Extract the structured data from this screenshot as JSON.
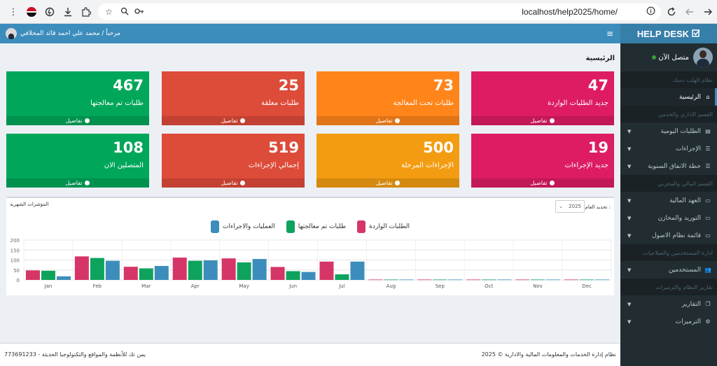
{
  "browser": {
    "url": "localhost/help2025/home/"
  },
  "brand": {
    "title": "HELP DESK"
  },
  "sidebar": {
    "user_status": "متصل الآن",
    "items": [
      {
        "type": "section",
        "label": "نظام الهلب دسك"
      },
      {
        "type": "item",
        "label": "الرئيسية",
        "active": true,
        "caret": false,
        "icon": "home-icon"
      },
      {
        "type": "section",
        "label": "القسم الاداري والخدمي"
      },
      {
        "type": "item",
        "label": "الطلبات اليومية",
        "caret": true,
        "icon": "file-icon"
      },
      {
        "type": "item",
        "label": "الإجراءات",
        "caret": true,
        "icon": "list-icon"
      },
      {
        "type": "item",
        "label": "خطة الانفاق السنوية",
        "caret": true,
        "icon": "list-icon"
      },
      {
        "type": "section",
        "label": "القسم المالي والمخزني"
      },
      {
        "type": "item",
        "label": "العهد المالية",
        "caret": true,
        "icon": "card-icon"
      },
      {
        "type": "item",
        "label": "التوريد والمخازن",
        "caret": true,
        "icon": "card-icon"
      },
      {
        "type": "item",
        "label": "قائمة نظام الاصول",
        "caret": true,
        "icon": "card-icon"
      },
      {
        "type": "section",
        "label": "ادارة المستخدمين والصلاحيات"
      },
      {
        "type": "item",
        "label": "المستخدمين",
        "caret": true,
        "icon": "users-icon"
      },
      {
        "type": "section",
        "label": "تقارير النظام والترميزات"
      },
      {
        "type": "item",
        "label": "التقارير",
        "caret": true,
        "icon": "copy-icon"
      },
      {
        "type": "item",
        "label": "الترميزات",
        "caret": true,
        "icon": "gears-icon"
      }
    ]
  },
  "header": {
    "greeting": "مرحباً / محمد علي احمد قائد المخلافي"
  },
  "page": {
    "title": "الرئيسية"
  },
  "boxes": [
    {
      "value": "47",
      "label": "جديد الطلبات الواردة",
      "more": "تفاصيل",
      "color": "#dd1c63"
    },
    {
      "value": "73",
      "label": "طلبات تحت المعالجة",
      "more": "تفاصيل",
      "color": "#ff851b"
    },
    {
      "value": "25",
      "label": "طلبات معلقة",
      "more": "تفاصيل",
      "color": "#dd4b39"
    },
    {
      "value": "467",
      "label": "طلبات تم معالجتها",
      "more": "تفاصيل",
      "color": "#00a65a"
    },
    {
      "value": "19",
      "label": "جديد الإجراءات",
      "more": "تفاصيل",
      "color": "#dd1c63"
    },
    {
      "value": "500",
      "label": "الإجراءات المرحلة",
      "more": "تفاصيل",
      "color": "#f39c12"
    },
    {
      "value": "519",
      "label": "إجمالي الإجراءات",
      "more": "تفاصيل",
      "color": "#dd4b39"
    },
    {
      "value": "108",
      "label": "المتصلين الان",
      "more": "تفاصيل",
      "color": "#00a65a"
    }
  ],
  "chart_panel": {
    "title": "المؤشرات الشهرية",
    "year_label": "تحديد العام :",
    "year_value": "2025"
  },
  "chart_data": {
    "type": "bar",
    "categories": [
      "Jan",
      "Feb",
      "Mar",
      "Apr",
      "May",
      "Jun",
      "Jul",
      "Aug",
      "Sep",
      "Oct",
      "Nov",
      "Dec"
    ],
    "series": [
      {
        "name": "الطلبات الواردة",
        "color": "#d63568",
        "values": [
          48,
          118,
          66,
          112,
          108,
          65,
          92,
          2,
          2,
          2,
          2,
          2
        ]
      },
      {
        "name": "طلبات تم معالجتها",
        "color": "#0ea35d",
        "values": [
          46,
          110,
          58,
          96,
          88,
          44,
          28,
          2,
          2,
          2,
          2,
          2
        ]
      },
      {
        "name": "العمليات والاجراءات",
        "color": "#3c8dbc",
        "values": [
          18,
          96,
          70,
          98,
          105,
          40,
          92,
          2,
          2,
          2,
          2,
          2
        ]
      }
    ],
    "yticks": [
      0,
      50,
      100,
      150,
      200
    ],
    "ylim": [
      0,
      200
    ],
    "grid": true,
    "legend_position": "top"
  },
  "footer": {
    "copyright": "نظام إدارة الخدمات والمعلومات المالية والادارية © 2025",
    "company": "يمن تك للأنظمة والمواقع والتكنولوجيا الحديثة - 773691233"
  }
}
